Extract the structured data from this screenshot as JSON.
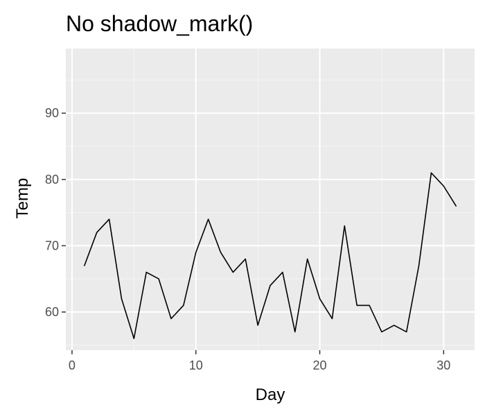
{
  "chart_data": {
    "type": "line",
    "title": "No shadow_mark()",
    "xlabel": "Day",
    "ylabel": "Temp",
    "xlim": [
      -0.5,
      32.5
    ],
    "ylim": [
      54.25,
      99.75
    ],
    "x_ticks": [
      0,
      10,
      20,
      30
    ],
    "x_minor_ticks": [
      5,
      15,
      25
    ],
    "y_ticks": [
      60,
      70,
      80,
      90
    ],
    "y_minor_ticks": [
      55,
      65,
      75,
      85,
      95
    ],
    "grid": true,
    "x_tick_labels": [
      "0",
      "10",
      "20",
      "30"
    ],
    "y_tick_labels": [
      "60",
      "70",
      "80",
      "90"
    ],
    "series": [
      {
        "x": [
          1,
          2,
          3,
          4,
          5,
          6,
          7,
          8,
          9,
          10,
          11,
          12,
          13,
          14,
          15,
          16,
          17,
          18,
          19,
          20,
          21,
          22,
          23,
          24,
          25,
          26,
          27,
          28,
          29,
          30,
          31
        ],
        "values": [
          67,
          72,
          74,
          62,
          56,
          66,
          65,
          59,
          61,
          69,
          74,
          69,
          66,
          68,
          58,
          64,
          66,
          57,
          68,
          62,
          59,
          73,
          61,
          61,
          57,
          58,
          57,
          67,
          81,
          79,
          76
        ]
      }
    ],
    "colors": {
      "panel_background": "#EBEBEB",
      "grid_major": "#FFFFFF",
      "grid_minor": "#F5F5F5",
      "line": "#000000",
      "tick": "#333333"
    }
  }
}
